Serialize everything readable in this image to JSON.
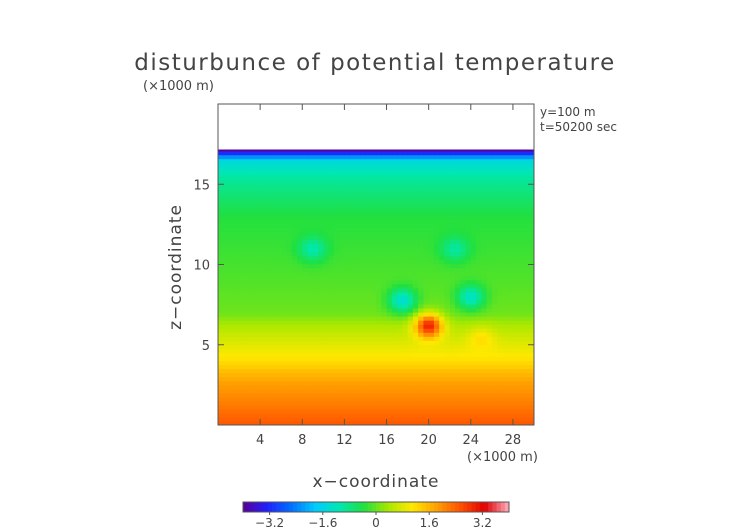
{
  "chart_data": {
    "type": "heatmap",
    "title": "disturbunce of potential temperature",
    "y_scale_note": "(×1000 m)",
    "x_scale_note": "(×1000 m)",
    "xlabel": "x−coordinate",
    "ylabel": "z−coordinate",
    "annotations": [
      "y=100 m",
      "t=50200 sec"
    ],
    "xlim": [
      0,
      30
    ],
    "ylim": [
      0,
      20
    ],
    "x_ticks": [
      4,
      8,
      12,
      16,
      20,
      24,
      28
    ],
    "x_tick_labels": [
      "4",
      "8",
      "12",
      "16",
      "20",
      "24",
      "28"
    ],
    "y_ticks": [
      5,
      10,
      15
    ],
    "y_tick_labels": [
      "5",
      "10",
      "15"
    ],
    "top_of_field_z": 17.1,
    "color_scale": {
      "min": -4.0,
      "max": 4.0,
      "ticks": [
        -3.2,
        -1.6,
        0,
        1.6,
        3.2
      ],
      "tick_labels": [
        "−3.2",
        "−1.6",
        "0",
        "1.6",
        "3.2"
      ],
      "colors": [
        "#5a0096",
        "#2020ff",
        "#0070ff",
        "#00ccff",
        "#00e8b0",
        "#20e040",
        "#a8e800",
        "#ffe800",
        "#ffa000",
        "#ff5000",
        "#e00000",
        "#ffb0c0"
      ]
    },
    "vertical_profile": [
      {
        "z": 0.0,
        "value": 2.5
      },
      {
        "z": 1.5,
        "value": 2.1
      },
      {
        "z": 2.7,
        "value": 1.8
      },
      {
        "z": 3.3,
        "value": 1.55
      },
      {
        "z": 4.0,
        "value": 1.2
      },
      {
        "z": 5.0,
        "value": 0.85
      },
      {
        "z": 6.0,
        "value": 0.5
      },
      {
        "z": 7.0,
        "value": 0.05
      },
      {
        "z": 9.0,
        "value": -0.1
      },
      {
        "z": 13.0,
        "value": -0.35
      },
      {
        "z": 15.5,
        "value": -1.0
      },
      {
        "z": 16.5,
        "value": -1.5
      },
      {
        "z": 17.1,
        "value": -3.6
      }
    ],
    "features": [
      {
        "kind": "warm_blob",
        "x": 20.0,
        "z": 6.2,
        "value": 3.0
      },
      {
        "kind": "warm_blob",
        "x": 25.0,
        "z": 5.3,
        "value": 1.2
      },
      {
        "kind": "cool_plume",
        "x": 9.0,
        "z": 11.0,
        "value": -1.1
      },
      {
        "kind": "cool_plume",
        "x": 22.5,
        "z": 11.0,
        "value": -1.0
      },
      {
        "kind": "cool_blob",
        "x": 17.5,
        "z": 7.8,
        "value": -1.4
      },
      {
        "kind": "cool_blob",
        "x": 24.0,
        "z": 8.0,
        "value": -1.3
      }
    ]
  }
}
